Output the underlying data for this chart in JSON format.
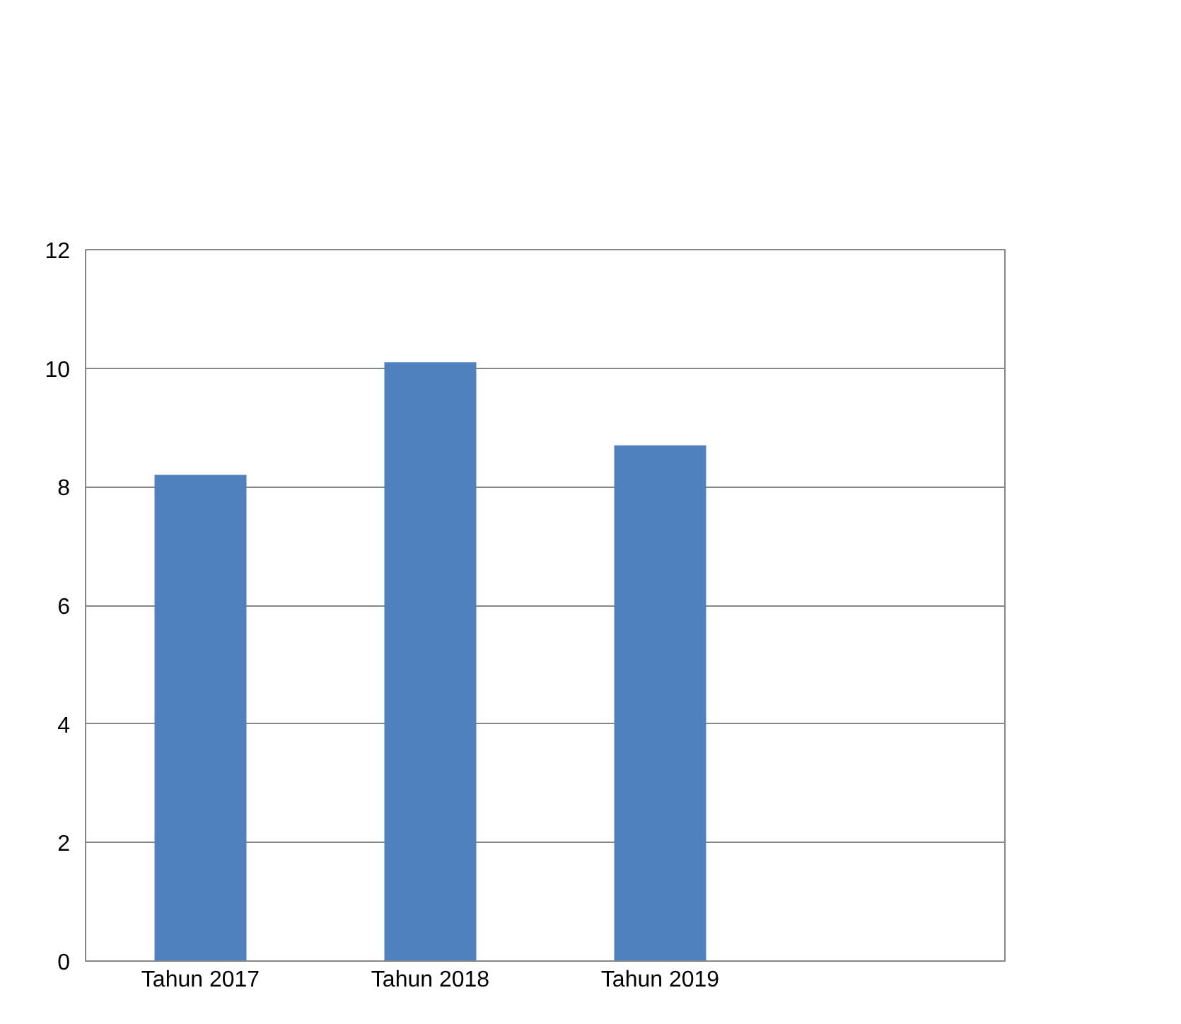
{
  "chart_data": {
    "type": "bar",
    "categories": [
      "Tahun 2017",
      "Tahun 2018",
      "Tahun 2019",
      null
    ],
    "values": [
      8.2,
      10.1,
      8.7,
      null
    ],
    "color": "#4f81bd",
    "ylim": [
      0,
      12
    ],
    "yticks": [
      0,
      2,
      4,
      6,
      8,
      10,
      12
    ],
    "grid": "y"
  }
}
